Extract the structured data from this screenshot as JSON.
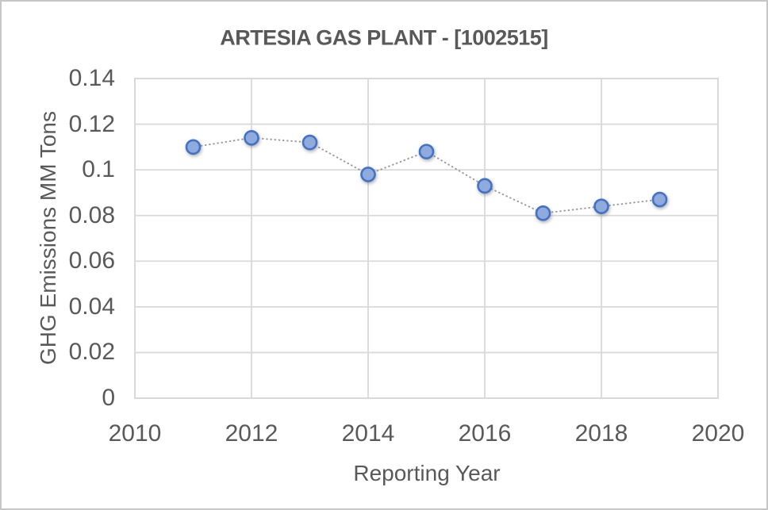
{
  "chart_data": {
    "type": "scatter",
    "title": "ARTESIA GAS PLANT - [1002515]",
    "xlabel": "Reporting Year",
    "ylabel": "GHG Emissions MM Tons",
    "x": [
      2011,
      2012,
      2013,
      2014,
      2015,
      2016,
      2017,
      2018,
      2019
    ],
    "y": [
      0.11,
      0.114,
      0.112,
      0.098,
      0.108,
      0.093,
      0.081,
      0.084,
      0.087
    ],
    "xlim": [
      2010,
      2020
    ],
    "ylim": [
      0,
      0.14
    ],
    "xticks": [
      2010,
      2012,
      2014,
      2016,
      2018,
      2020
    ],
    "yticks": [
      0,
      0.02,
      0.04,
      0.06,
      0.08,
      0.1,
      0.12,
      0.14
    ],
    "ytick_labels": [
      "0",
      "0.02",
      "0.04",
      "0.06",
      "0.08",
      "0.1",
      "0.12",
      "0.14"
    ],
    "xtick_labels": [
      "2010",
      "2012",
      "2014",
      "2016",
      "2018",
      "2020"
    ],
    "grid": true,
    "legend": false,
    "line_style": "dotted",
    "marker_shape": "circle",
    "colors": {
      "marker_fill": "#8FAADC",
      "marker_stroke": "#4472C4",
      "connector_line": "#9a9a9a",
      "gridline": "#D9D9D9",
      "plot_border": "#D9D9D9",
      "text": "#595959"
    }
  }
}
